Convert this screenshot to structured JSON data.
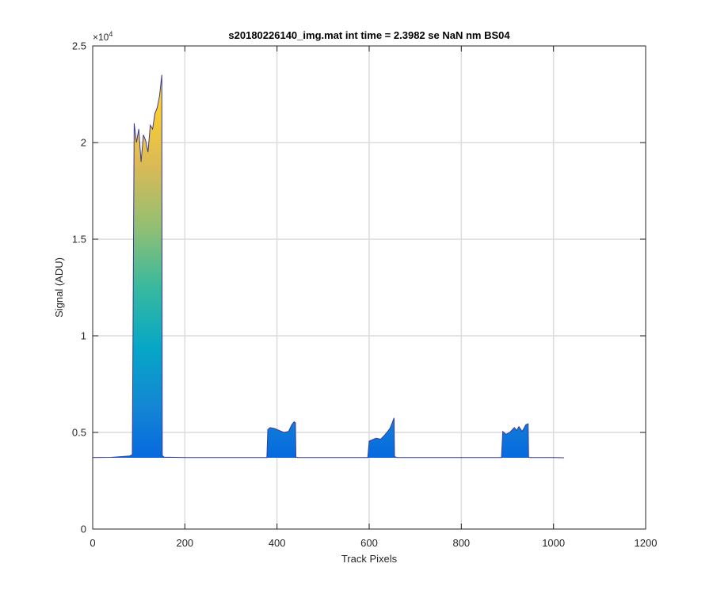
{
  "chart_data": {
    "type": "area",
    "title": "s20180226140_img.mat int time = 2.3982 se  NaN nm BS04",
    "xlabel": "Track Pixels",
    "ylabel": "Signal (ADU)",
    "xlim": [
      0,
      1200
    ],
    "ylim": [
      0,
      25000
    ],
    "x_ticks": [
      0,
      200,
      400,
      600,
      800,
      1000,
      1200
    ],
    "x_tick_labels": [
      "0",
      "200",
      "400",
      "600",
      "800",
      "1000",
      "1200"
    ],
    "y_ticks": [
      0,
      5000,
      10000,
      15000,
      20000,
      25000
    ],
    "y_tick_labels": [
      "0",
      "0.5",
      "1",
      "1.5",
      "2",
      "2.5"
    ],
    "y_exponent_base": "×10",
    "y_exponent_power": "4",
    "grid": true,
    "colormap": [
      "#352a87",
      "#0363e1",
      "#1485d4",
      "#06a7c6",
      "#38b99e",
      "#92bf73",
      "#d9ba56",
      "#fcce2e",
      "#f9fb0e"
    ],
    "x": [
      0,
      40,
      80,
      86,
      90,
      95,
      100,
      105,
      110,
      115,
      120,
      125,
      130,
      135,
      140,
      145,
      150,
      151,
      155,
      200,
      300,
      378,
      380,
      385,
      395,
      405,
      415,
      425,
      432,
      437,
      440,
      441,
      445,
      500,
      595,
      597,
      600,
      605,
      615,
      625,
      635,
      645,
      650,
      654,
      655,
      660,
      700,
      800,
      885,
      887,
      890,
      897,
      905,
      915,
      920,
      925,
      932,
      940,
      945,
      946,
      950,
      1000,
      1023
    ],
    "y": [
      3700,
      3710,
      3780,
      3850,
      21000,
      20000,
      20700,
      19000,
      20400,
      20100,
      19500,
      20900,
      20700,
      21500,
      21800,
      22400,
      23500,
      3800,
      3720,
      3700,
      3700,
      3700,
      5150,
      5250,
      5200,
      5100,
      5000,
      5050,
      5400,
      5550,
      5500,
      3720,
      3700,
      3700,
      3700,
      3700,
      4550,
      4600,
      4700,
      4650,
      4900,
      5200,
      5500,
      5750,
      3750,
      3700,
      3700,
      3700,
      3700,
      3700,
      5050,
      4900,
      5000,
      5250,
      5100,
      5300,
      5050,
      5400,
      5450,
      3710,
      3700,
      3700,
      3690
    ]
  }
}
